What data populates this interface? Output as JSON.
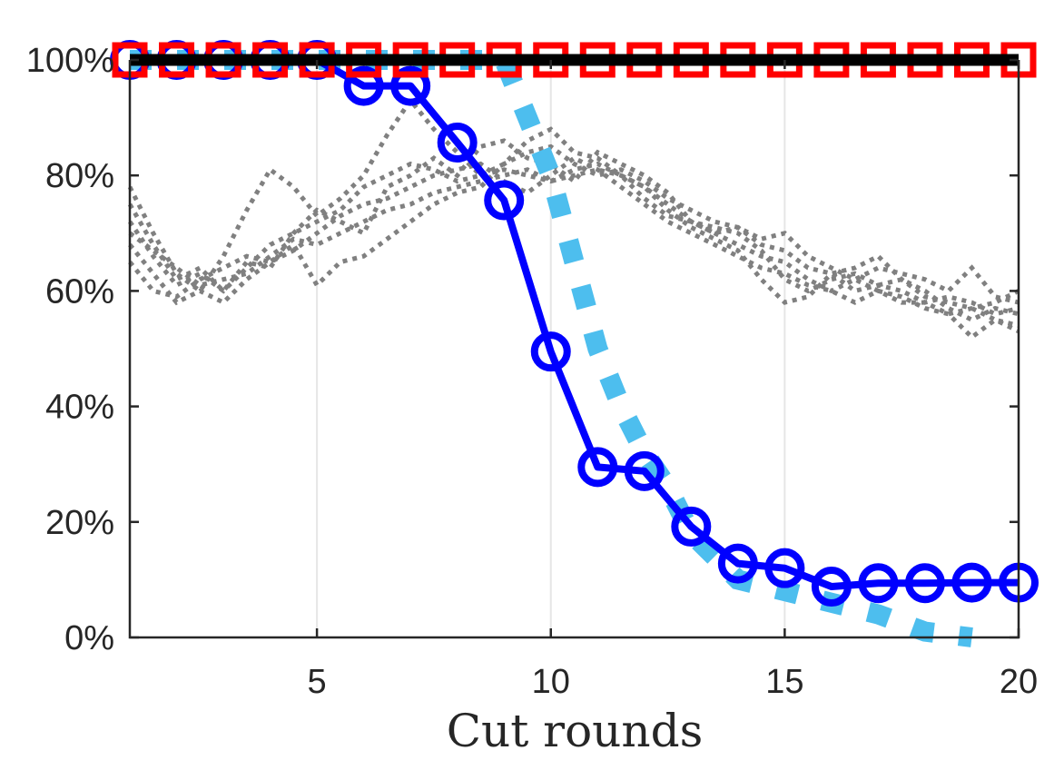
{
  "chart_data": {
    "type": "line",
    "xlabel": "Cut rounds",
    "ylabel": "",
    "xlim": [
      1,
      20
    ],
    "ylim": [
      0,
      100
    ],
    "x_ticks": [
      5,
      10,
      15,
      20
    ],
    "y_ticks": [
      0,
      20,
      40,
      60,
      80,
      100
    ],
    "y_tick_format": "percent",
    "grid": "x-only",
    "colors": {
      "background": "#ffffff",
      "axis": "#262626",
      "gray_series": "#808080",
      "dotted_series": "#4DBEEE",
      "circle_series": "#0000FF",
      "square_series": "#FF0000",
      "black_series": "#000000"
    },
    "series": [
      {
        "style": "gray-dotted",
        "x": [
          1,
          1.5,
          2,
          2.5,
          3,
          3.5,
          4,
          4.5,
          5,
          5.5,
          6,
          6.5,
          7,
          7.5,
          8,
          8.5,
          9,
          9.5,
          10,
          10.5,
          11,
          11.5,
          12,
          12.5,
          13,
          13.5,
          14,
          14.5,
          15,
          15.5,
          16,
          16.5,
          17,
          17.5,
          18,
          18.5,
          19,
          19.5,
          20
        ],
        "values": [
          78,
          70,
          63,
          60,
          66,
          74,
          81,
          78,
          73,
          76,
          80,
          87,
          93,
          88,
          84,
          80,
          82,
          86,
          88,
          84,
          83,
          80,
          78,
          75,
          72,
          70,
          68,
          66,
          65,
          62,
          60,
          62,
          60,
          58,
          58,
          56,
          57,
          58,
          60
        ]
      },
      {
        "style": "gray-dotted",
        "x": [
          1,
          1.5,
          2,
          2.5,
          3,
          3.5,
          4,
          4.5,
          5,
          5.5,
          6,
          6.5,
          7,
          7.5,
          8,
          8.5,
          9,
          9.5,
          10,
          10.5,
          11,
          11.5,
          12,
          12.5,
          13,
          13.5,
          14,
          14.5,
          15,
          15.5,
          16,
          16.5,
          17,
          17.5,
          18,
          18.5,
          19,
          19.5,
          20
        ],
        "values": [
          72,
          66,
          61,
          63,
          60,
          64,
          68,
          70,
          72,
          74,
          78,
          80,
          82,
          81,
          79,
          80,
          81,
          80,
          79,
          81,
          82,
          80,
          76,
          73,
          72,
          71,
          70,
          67,
          62,
          60,
          62,
          63,
          61,
          62,
          60,
          57,
          55,
          57,
          56
        ]
      },
      {
        "style": "gray-dotted",
        "x": [
          1,
          1.5,
          2,
          2.5,
          3,
          3.5,
          4,
          4.5,
          5,
          5.5,
          6,
          6.5,
          7,
          7.5,
          8,
          8.5,
          9,
          9.5,
          10,
          10.5,
          11,
          11.5,
          12,
          12.5,
          13,
          13.5,
          14,
          14.5,
          15,
          15.5,
          16,
          16.5,
          17,
          17.5,
          18,
          18.5,
          19,
          19.5,
          20
        ],
        "values": [
          65,
          60,
          59,
          62,
          64,
          66,
          65,
          67,
          70,
          73,
          75,
          76,
          78,
          80,
          81,
          82,
          79,
          77,
          80,
          83,
          81,
          78,
          75,
          72,
          70,
          68,
          66,
          64,
          63,
          61,
          60,
          58,
          60,
          59,
          57,
          56,
          52,
          55,
          54
        ]
      },
      {
        "style": "gray-dotted",
        "x": [
          1,
          1.5,
          2,
          2.5,
          3,
          3.5,
          4,
          4.5,
          5,
          5.5,
          6,
          6.5,
          7,
          7.5,
          8,
          8.5,
          9,
          9.5,
          10,
          10.5,
          11,
          11.5,
          12,
          12.5,
          13,
          13.5,
          14,
          14.5,
          15,
          15.5,
          16,
          16.5,
          17,
          17.5,
          18,
          18.5,
          19,
          19.5,
          20
        ],
        "values": [
          70,
          67,
          64,
          61,
          62,
          63,
          66,
          69,
          68,
          70,
          72,
          74,
          75,
          77,
          78,
          79,
          80,
          81,
          79,
          80,
          81,
          80,
          78,
          74,
          71,
          69,
          67,
          62,
          58,
          59,
          63,
          64,
          66,
          62,
          59,
          58,
          57,
          55,
          53
        ]
      },
      {
        "style": "gray-dotted",
        "x": [
          1,
          1.5,
          2,
          2.5,
          3,
          3.5,
          4,
          4.5,
          5,
          5.5,
          6,
          6.5,
          7,
          7.5,
          8,
          8.5,
          9,
          9.5,
          10,
          10.5,
          11,
          11.5,
          12,
          12.5,
          13,
          13.5,
          14,
          14.5,
          15,
          15.5,
          16,
          16.5,
          17,
          17.5,
          18,
          18.5,
          19,
          19.5,
          20
        ],
        "values": [
          68,
          63,
          58,
          60,
          58,
          62,
          65,
          68,
          61,
          65,
          66,
          69,
          72,
          75,
          77,
          78,
          82,
          84,
          85,
          82,
          80,
          81,
          79,
          76,
          74,
          72,
          71,
          69,
          70,
          66,
          64,
          62,
          64,
          63,
          62,
          60,
          64,
          59,
          58
        ]
      },
      {
        "style": "gray-dotted",
        "x": [
          1,
          1.5,
          2,
          2.5,
          3,
          3.5,
          4,
          4.5,
          5,
          5.5,
          6,
          6.5,
          7,
          7.5,
          8,
          8.5,
          9,
          9.5,
          10,
          10.5,
          11,
          11.5,
          12,
          12.5,
          13,
          13.5,
          14,
          14.5,
          15,
          15.5,
          16,
          16.5,
          17,
          17.5,
          18,
          18.5,
          19,
          19.5,
          20
        ],
        "values": [
          75,
          68,
          62,
          64,
          60,
          65,
          64,
          70,
          74,
          72,
          70,
          78,
          80,
          83,
          80,
          85,
          86,
          83,
          82,
          79,
          84,
          82,
          80,
          77,
          72,
          70,
          71,
          68,
          67,
          64,
          63,
          60,
          61,
          60,
          58,
          59,
          58,
          56,
          57
        ]
      },
      {
        "style": "dotted",
        "x": [
          1,
          2,
          3,
          4,
          5,
          6,
          7,
          8,
          9,
          9.5,
          10,
          10.5,
          11,
          11.5,
          12,
          12.5,
          13,
          14,
          15,
          16,
          17,
          18,
          19
        ],
        "values": [
          100,
          100,
          100,
          100,
          100,
          100,
          100,
          100,
          100,
          90,
          80,
          65,
          50,
          40,
          32,
          26,
          18,
          10,
          8,
          6,
          4,
          1,
          0
        ]
      },
      {
        "style": "circle-line",
        "x": [
          1,
          2,
          3,
          4,
          5,
          6,
          7,
          8,
          9,
          10,
          11,
          12,
          13,
          14,
          15,
          16,
          17,
          18,
          19,
          20
        ],
        "values": [
          100,
          100,
          100,
          100,
          100,
          95.5,
          95.5,
          85.7,
          75.7,
          49.5,
          29.5,
          28.8,
          19.2,
          12.8,
          12,
          8.8,
          9.4,
          9.4,
          9.5,
          9.5
        ]
      },
      {
        "style": "square-line",
        "x": [
          1,
          2,
          3,
          4,
          5,
          6,
          7,
          8,
          9,
          10,
          11,
          12,
          13,
          14,
          15,
          16,
          17,
          18,
          19,
          20
        ],
        "values": [
          100,
          100,
          100,
          100,
          100,
          100,
          100,
          100,
          100,
          100,
          100,
          100,
          100,
          100,
          100,
          100,
          100,
          100,
          100,
          100
        ]
      },
      {
        "style": "solid-black",
        "x": [
          1,
          20
        ],
        "values": [
          100,
          100
        ]
      }
    ]
  }
}
